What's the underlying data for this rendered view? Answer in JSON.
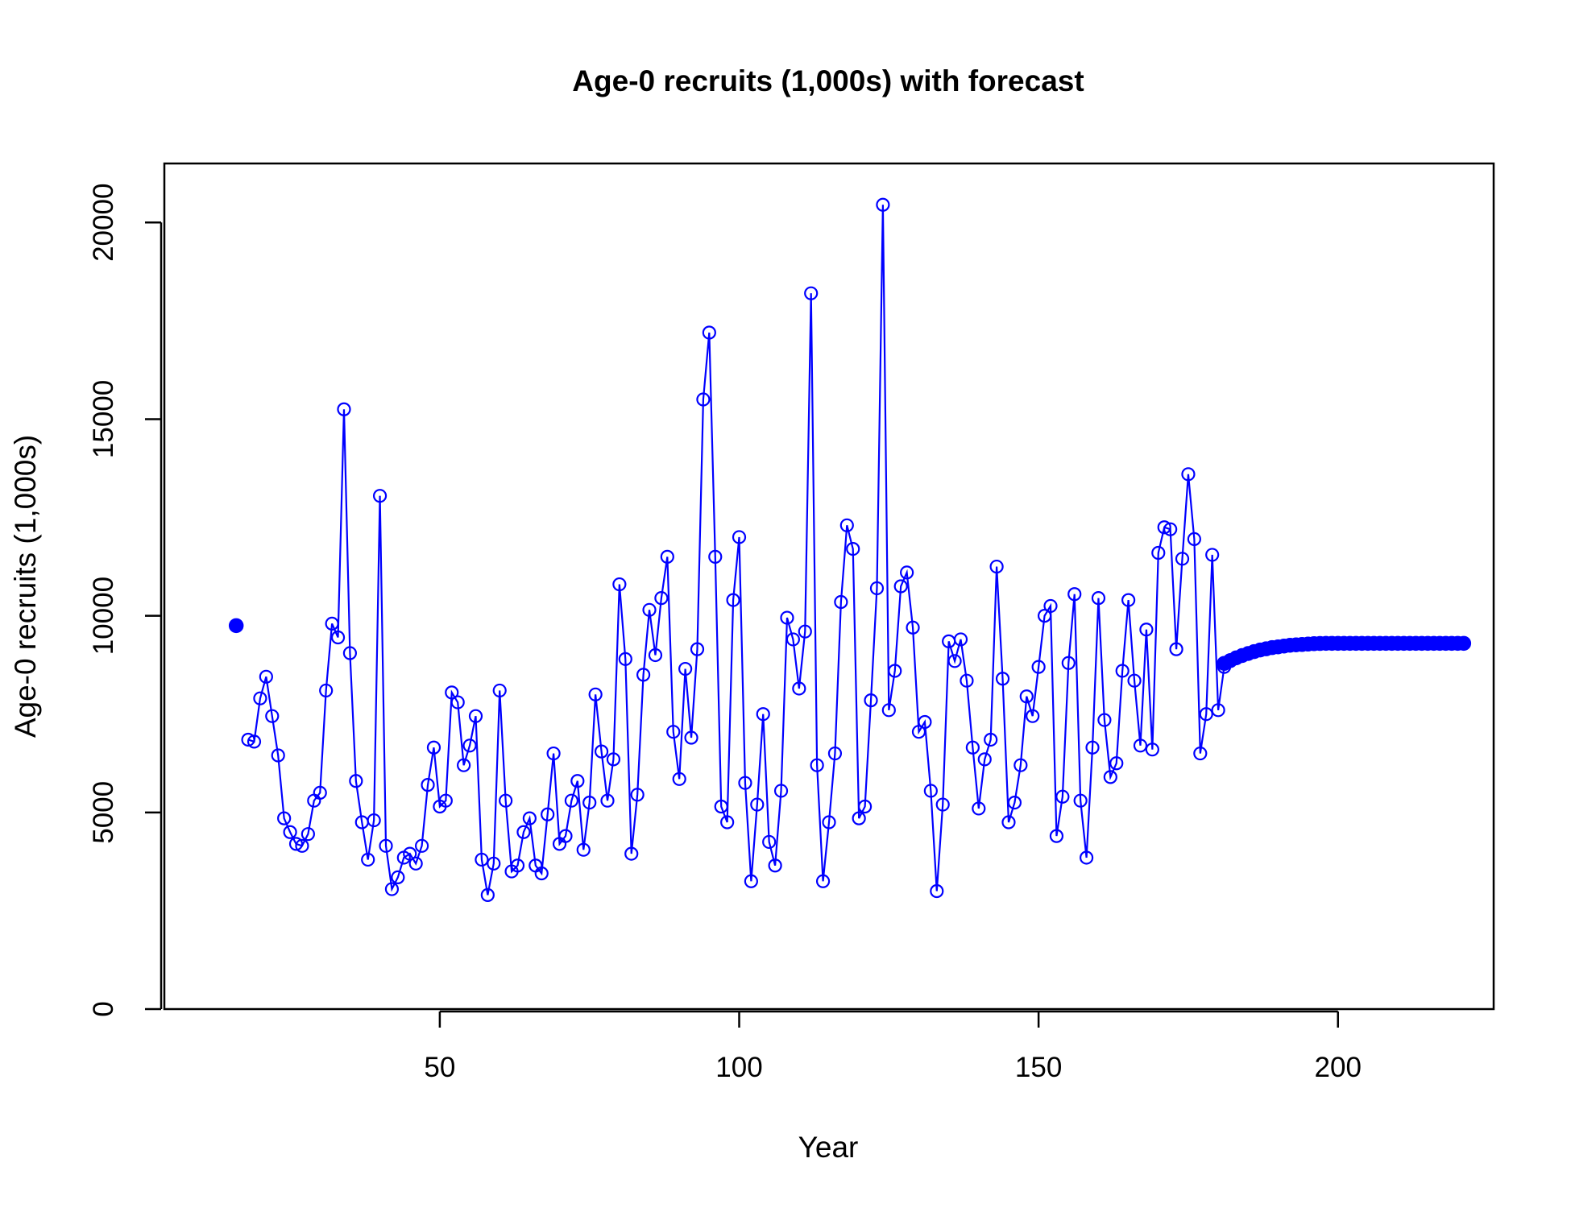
{
  "chart_data": {
    "type": "line",
    "title": "Age-0 recruits (1,000s) with forecast",
    "xlabel": "Year",
    "ylabel": "Age-0 recruits (1,000s)",
    "xlim": [
      4,
      226
    ],
    "ylim": [
      0,
      21500
    ],
    "x_ticks": [
      50,
      100,
      150,
      200
    ],
    "y_ticks": [
      0,
      5000,
      10000,
      15000,
      20000
    ],
    "grid": false,
    "legend": "none",
    "colors": {
      "series": "#0000ff",
      "axis": "#000000"
    },
    "series": [
      {
        "marker": "open-circle",
        "x_start": 18,
        "values": [
          6850,
          6800,
          7900,
          8450,
          7450,
          6450,
          4850,
          4500,
          4200,
          4150,
          4450,
          5300,
          5500,
          8100,
          9800,
          9450,
          15250,
          9050,
          5800,
          4750,
          3800,
          4800,
          13050,
          4150,
          3050,
          3350,
          3850,
          3950,
          3700,
          4150,
          5700,
          6650,
          5150,
          5300,
          8050,
          7800,
          6200,
          6700,
          7450,
          3800,
          2900,
          3700,
          8100,
          5300,
          3500,
          3650,
          4500,
          4850,
          3650,
          3450,
          4950,
          6500,
          4200,
          4400,
          5300,
          5800,
          4050,
          5250,
          8000,
          6550,
          5300,
          6350,
          10800,
          8900,
          3950,
          5450,
          8500,
          10150,
          9000,
          10450,
          11500,
          7050,
          5850,
          8650,
          6900,
          9150,
          15500,
          17200,
          11500,
          5150,
          4750,
          10400,
          12000,
          5750,
          3250,
          5200,
          7500,
          4250,
          3650,
          5550,
          9950,
          9400,
          8150,
          9600,
          18200,
          6200,
          3250,
          4750,
          6500,
          10350,
          12300,
          11700,
          4850,
          5150,
          7850,
          10700,
          20450,
          7600,
          8600,
          10750,
          11100,
          9700,
          7050,
          7300,
          5550,
          3000,
          5200,
          9350,
          8850,
          9400,
          8350,
          6650,
          5100,
          6350,
          6850,
          11250,
          8400,
          4750,
          5250,
          6200,
          7950,
          7450,
          8700,
          10000,
          10250,
          4400,
          5400,
          8800,
          10550,
          5300,
          3850,
          6650,
          10450,
          7350,
          5900,
          6250,
          8600,
          10400,
          8350,
          6700,
          9650,
          6600,
          11600,
          12250,
          12200,
          9150,
          11450,
          13600,
          11950,
          6500,
          7500,
          11550,
          7600,
          8700
        ]
      },
      {
        "marker": "filled-circle",
        "x_start": 181,
        "values": [
          8790,
          8860,
          8930,
          8990,
          9040,
          9090,
          9130,
          9160,
          9190,
          9210,
          9230,
          9250,
          9260,
          9270,
          9280,
          9290,
          9295,
          9300,
          9300,
          9300,
          9300,
          9300,
          9300,
          9300,
          9300,
          9300,
          9300,
          9300,
          9300,
          9300,
          9300,
          9300,
          9300,
          9300,
          9300,
          9300,
          9300,
          9300,
          9300,
          9300,
          9300
        ]
      },
      {
        "marker": "filled-circle",
        "x": [
          16
        ],
        "values": [
          9750
        ]
      }
    ]
  }
}
